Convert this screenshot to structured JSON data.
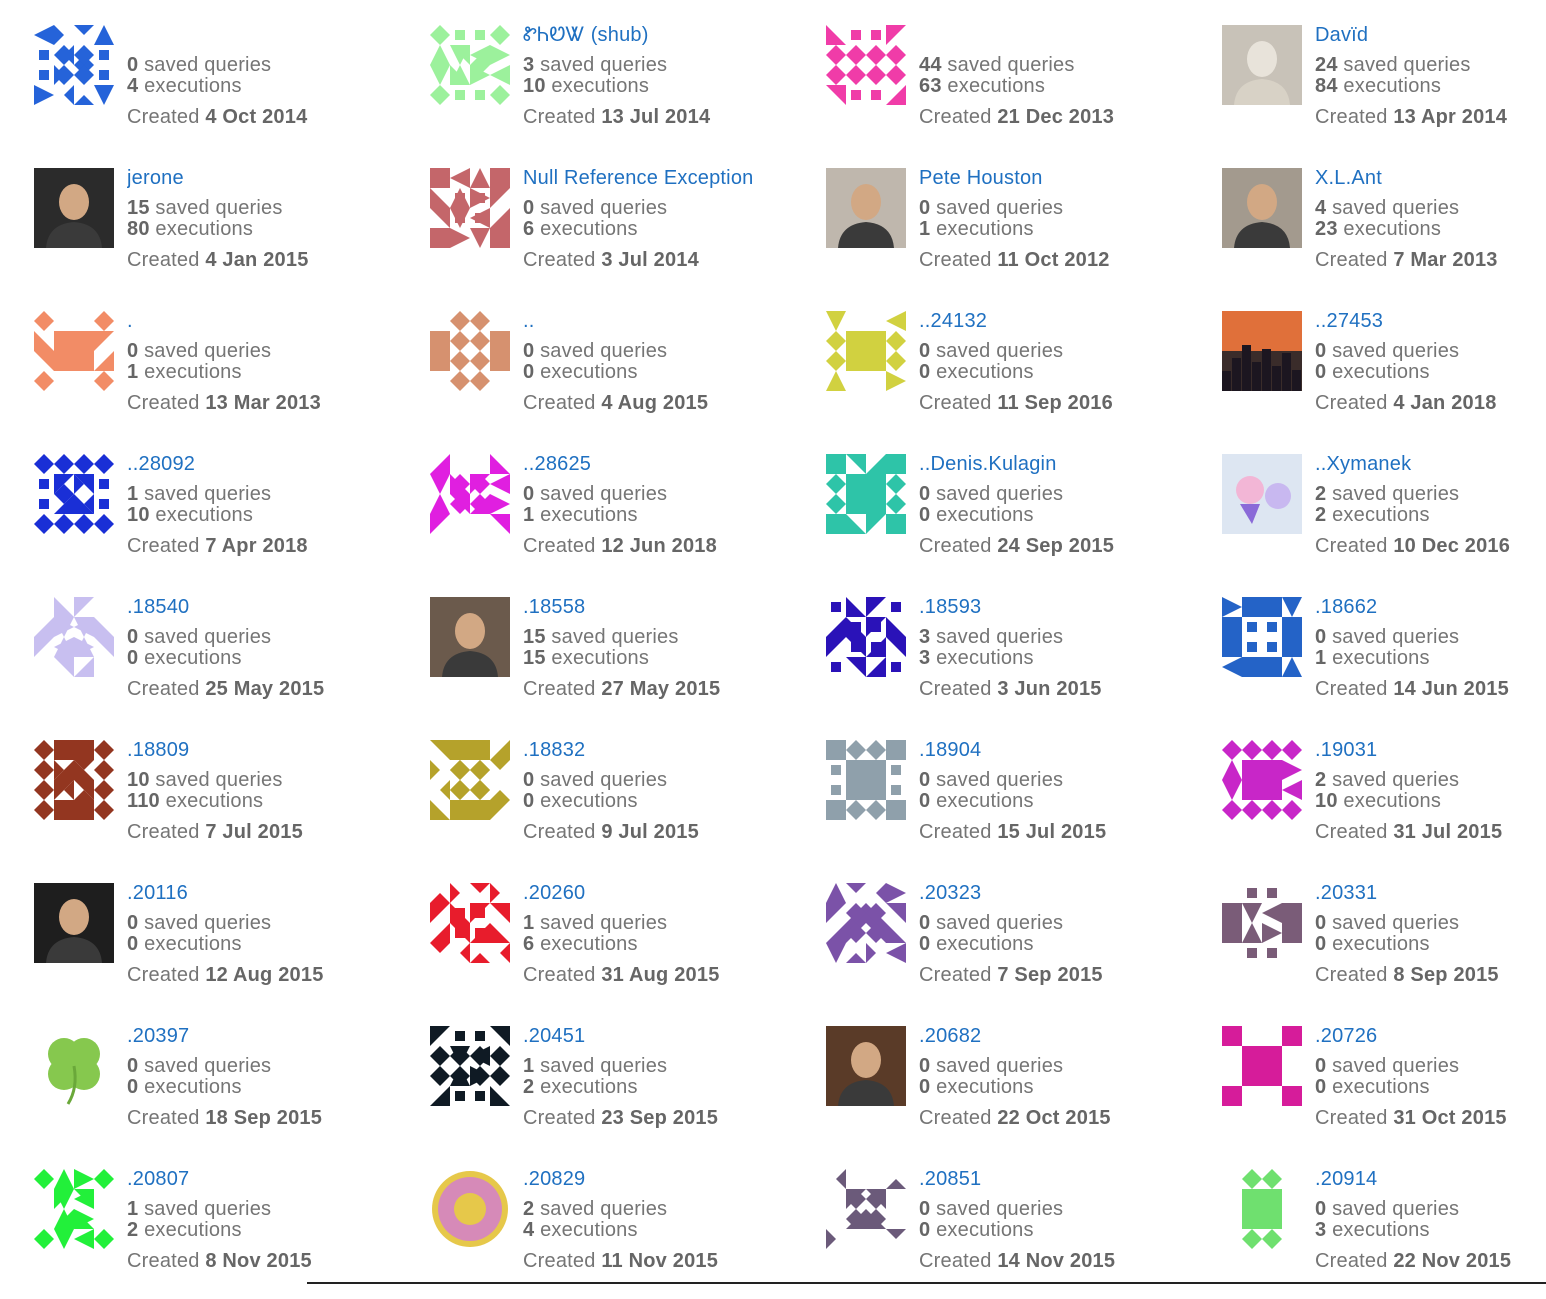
{
  "labels": {
    "saved_queries": "saved queries",
    "executions": "executions",
    "created": "Created"
  },
  "users": [
    {
      "name": "",
      "queries": "0",
      "executions": "4",
      "created": "4 Oct 2014",
      "avatar": {
        "kind": "identicon",
        "color": "#2563d9",
        "pattern": 1
      }
    },
    {
      "name": "ᏑᏂᏬᏔ (shub)",
      "queries": "3",
      "executions": "10",
      "created": "13 Jul 2014",
      "avatar": {
        "kind": "identicon",
        "color": "#9cf19c",
        "pattern": 2
      }
    },
    {
      "name": "",
      "queries": "44",
      "executions": "63",
      "created": "21 Dec 2013",
      "avatar": {
        "kind": "identicon",
        "color": "#f03ca8",
        "pattern": 3
      }
    },
    {
      "name": "Davïd",
      "queries": "24",
      "executions": "84",
      "created": "13 Apr 2014",
      "avatar": {
        "kind": "photo",
        "color": "#c8c2b8",
        "icon": "statue-photo"
      }
    },
    {
      "name": "jerone",
      "queries": "15",
      "executions": "80",
      "created": "4 Jan 2015",
      "avatar": {
        "kind": "photo",
        "color": "#2b2b2b",
        "icon": "person-photo"
      }
    },
    {
      "name": "Null Reference Exception",
      "queries": "0",
      "executions": "6",
      "created": "3 Jul 2014",
      "avatar": {
        "kind": "identicon",
        "color": "#c4666a",
        "pattern": 4
      }
    },
    {
      "name": "Pete Houston",
      "queries": "0",
      "executions": "1",
      "created": "11 Oct 2012",
      "avatar": {
        "kind": "photo",
        "color": "#bfb7ad",
        "icon": "person-photo"
      }
    },
    {
      "name": "X.L.Ant",
      "queries": "4",
      "executions": "23",
      "created": "7 Mar 2013",
      "avatar": {
        "kind": "photo",
        "color": "#a39a8e",
        "icon": "person-photo"
      }
    },
    {
      "name": ".",
      "queries": "0",
      "executions": "1",
      "created": "13 Mar 2013",
      "avatar": {
        "kind": "identicon",
        "color": "#f28c66",
        "pattern": 5
      }
    },
    {
      "name": "..",
      "queries": "0",
      "executions": "0",
      "created": "4 Aug 2015",
      "avatar": {
        "kind": "identicon",
        "color": "#d6916f",
        "pattern": 6
      }
    },
    {
      "name": "..24132",
      "queries": "0",
      "executions": "0",
      "created": "11 Sep 2016",
      "avatar": {
        "kind": "identicon",
        "color": "#d1d140",
        "pattern": 7
      }
    },
    {
      "name": "..27453",
      "queries": "0",
      "executions": "0",
      "created": "4 Jan 2018",
      "avatar": {
        "kind": "photo",
        "color": "#3a2c2a",
        "icon": "city-photo"
      }
    },
    {
      "name": "..28092",
      "queries": "1",
      "executions": "10",
      "created": "7 Apr 2018",
      "avatar": {
        "kind": "identicon",
        "color": "#1a2fd6",
        "pattern": 8
      }
    },
    {
      "name": "..28625",
      "queries": "0",
      "executions": "1",
      "created": "12 Jun 2018",
      "avatar": {
        "kind": "identicon",
        "color": "#e01fe0",
        "pattern": 9
      }
    },
    {
      "name": "..Denis.Kulagin",
      "queries": "0",
      "executions": "0",
      "created": "24 Sep 2015",
      "avatar": {
        "kind": "identicon",
        "color": "#2ec4a8",
        "pattern": 10
      }
    },
    {
      "name": "..Xymanek",
      "queries": "2",
      "executions": "2",
      "created": "10 Dec 2016",
      "avatar": {
        "kind": "photo",
        "color": "#dde6f2",
        "icon": "cartoon-photo"
      }
    },
    {
      "name": ".18540",
      "queries": "0",
      "executions": "0",
      "created": "25 May 2015",
      "avatar": {
        "kind": "identicon",
        "color": "#c8bff0",
        "pattern": 11
      }
    },
    {
      "name": ".18558",
      "queries": "15",
      "executions": "15",
      "created": "27 May 2015",
      "avatar": {
        "kind": "photo",
        "color": "#6b5a4c",
        "icon": "person-photo"
      }
    },
    {
      "name": ".18593",
      "queries": "3",
      "executions": "3",
      "created": "3 Jun 2015",
      "avatar": {
        "kind": "identicon",
        "color": "#2a12b8",
        "pattern": 12
      }
    },
    {
      "name": ".18662",
      "queries": "0",
      "executions": "1",
      "created": "14 Jun 2015",
      "avatar": {
        "kind": "identicon",
        "color": "#2463c7",
        "pattern": 13
      }
    },
    {
      "name": ".18809",
      "queries": "10",
      "executions": "110",
      "created": "7 Jul 2015",
      "avatar": {
        "kind": "identicon",
        "color": "#933620",
        "pattern": 14
      }
    },
    {
      "name": ".18832",
      "queries": "0",
      "executions": "0",
      "created": "9 Jul 2015",
      "avatar": {
        "kind": "identicon",
        "color": "#b5a22b",
        "pattern": 15
      }
    },
    {
      "name": ".18904",
      "queries": "0",
      "executions": "0",
      "created": "15 Jul 2015",
      "avatar": {
        "kind": "identicon",
        "color": "#8fa0ab",
        "pattern": 16
      }
    },
    {
      "name": ".19031",
      "queries": "2",
      "executions": "10",
      "created": "31 Jul 2015",
      "avatar": {
        "kind": "identicon",
        "color": "#c826c8",
        "pattern": 17
      }
    },
    {
      "name": ".20116",
      "queries": "0",
      "executions": "0",
      "created": "12 Aug 2015",
      "avatar": {
        "kind": "photo",
        "color": "#1e1e1e",
        "icon": "person-photo"
      }
    },
    {
      "name": ".20260",
      "queries": "1",
      "executions": "6",
      "created": "31 Aug 2015",
      "avatar": {
        "kind": "identicon",
        "color": "#e81c2c",
        "pattern": 18
      }
    },
    {
      "name": ".20323",
      "queries": "0",
      "executions": "0",
      "created": "7 Sep 2015",
      "avatar": {
        "kind": "identicon",
        "color": "#7b52a8",
        "pattern": 19
      }
    },
    {
      "name": ".20331",
      "queries": "0",
      "executions": "0",
      "created": "8 Sep 2015",
      "avatar": {
        "kind": "identicon",
        "color": "#7a5c78",
        "pattern": 20
      }
    },
    {
      "name": ".20397",
      "queries": "0",
      "executions": "0",
      "created": "18 Sep 2015",
      "avatar": {
        "kind": "photo",
        "color": "#8fcf5a",
        "icon": "clover-photo"
      }
    },
    {
      "name": ".20451",
      "queries": "1",
      "executions": "2",
      "created": "23 Sep 2015",
      "avatar": {
        "kind": "identicon",
        "color": "#0f1a24",
        "pattern": 21
      }
    },
    {
      "name": ".20682",
      "queries": "0",
      "executions": "0",
      "created": "22 Oct 2015",
      "avatar": {
        "kind": "photo",
        "color": "#5a3b28",
        "icon": "person-photo"
      }
    },
    {
      "name": ".20726",
      "queries": "0",
      "executions": "0",
      "created": "31 Oct 2015",
      "avatar": {
        "kind": "identicon",
        "color": "#d61c9a",
        "pattern": 22
      }
    },
    {
      "name": ".20807",
      "queries": "1",
      "executions": "2",
      "created": "8 Nov 2015",
      "avatar": {
        "kind": "identicon",
        "color": "#22f03a",
        "pattern": 23
      }
    },
    {
      "name": ".20829",
      "queries": "2",
      "executions": "4",
      "created": "11 Nov 2015",
      "avatar": {
        "kind": "photo",
        "color": "#e0b0c8",
        "icon": "emblem-photo"
      }
    },
    {
      "name": ".20851",
      "queries": "0",
      "executions": "0",
      "created": "14 Nov 2015",
      "avatar": {
        "kind": "identicon",
        "color": "#6b5a7a",
        "pattern": 24
      }
    },
    {
      "name": ".20914",
      "queries": "0",
      "executions": "3",
      "created": "22 Nov 2015",
      "avatar": {
        "kind": "identicon",
        "color": "#6fe06f",
        "pattern": 25
      }
    }
  ]
}
